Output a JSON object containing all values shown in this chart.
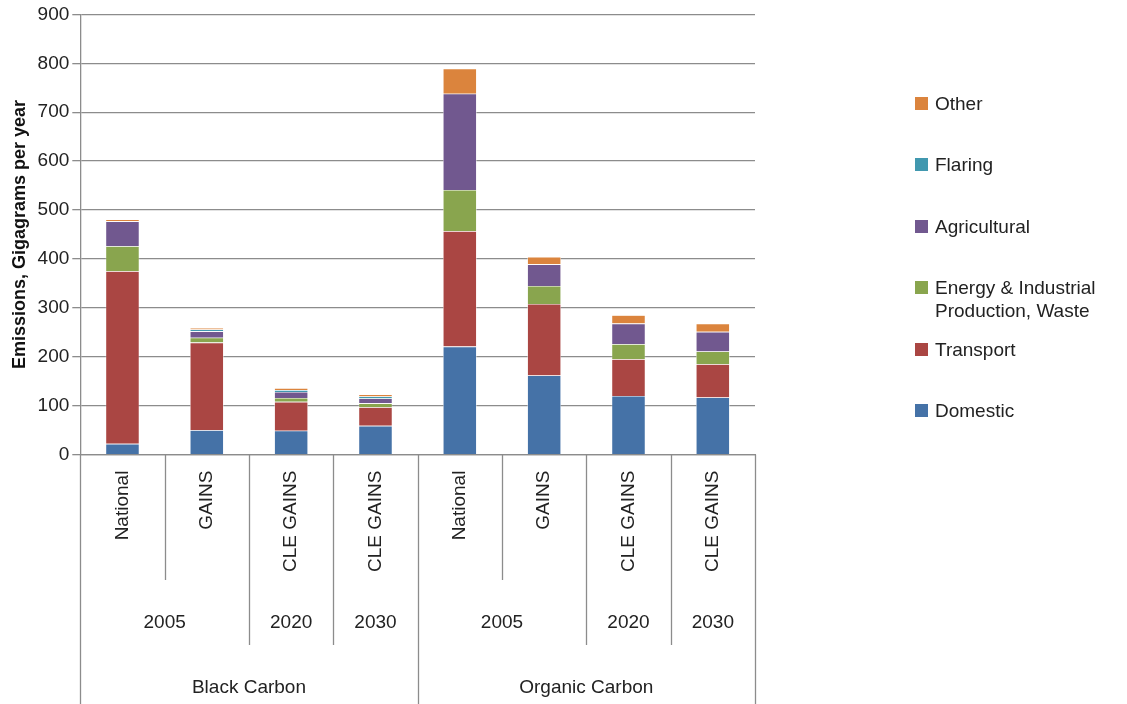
{
  "chart_data": {
    "type": "bar",
    "stacked": true,
    "ylabel": "Emissions, Gigagrams per year",
    "categories": [
      "National",
      "GAINS",
      "CLE GAINS",
      "CLE GAINS",
      "National",
      "GAINS",
      "CLE GAINS",
      "CLE GAINS"
    ],
    "series": [
      {
        "name": "Domestic",
        "color": "#4572a7",
        "values": [
          22,
          50,
          49,
          59,
          221,
          162,
          120,
          117
        ]
      },
      {
        "name": "Transport",
        "color": "#aa4643",
        "values": [
          353,
          179,
          59,
          38,
          236,
          146,
          75,
          68
        ]
      },
      {
        "name": "Energy & Industrial Production, Waste",
        "color": "#89a54e",
        "values": [
          51,
          10,
          8,
          8,
          84,
          37,
          31,
          26
        ]
      },
      {
        "name": "Agricultural",
        "color": "#71588f",
        "values": [
          51,
          13,
          12,
          10,
          197,
          44,
          42,
          40
        ]
      },
      {
        "name": "Flaring",
        "color": "#4198af",
        "values": [
          0,
          4,
          4,
          4,
          0,
          0,
          0,
          0
        ]
      },
      {
        "name": "Other",
        "color": "#db843d",
        "values": [
          4,
          3,
          4,
          4,
          51,
          15,
          17,
          17
        ]
      }
    ],
    "annotations": [
      "2005",
      "2020",
      "2030",
      "2005",
      "2020",
      "2030",
      "Black Carbon",
      "Organic Carbon"
    ],
    "ylim": [
      0,
      900
    ],
    "yticks": [
      0,
      100,
      200,
      300,
      400,
      500,
      600,
      700,
      800,
      900
    ],
    "grid": "y",
    "legend": "right"
  }
}
